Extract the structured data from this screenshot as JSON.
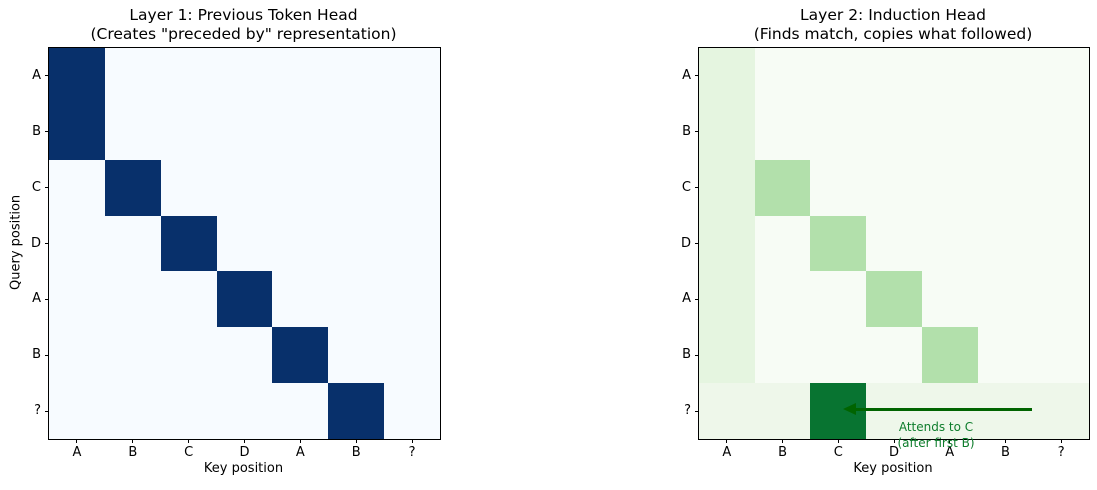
{
  "chart_data": [
    {
      "type": "heatmap",
      "title_line1": "Layer 1: Previous Token Head",
      "title_line2": "(Creates \"preceded by\" representation)",
      "xlabel": "Key position",
      "ylabel": "Query position",
      "x_ticklabels": [
        "A",
        "B",
        "C",
        "D",
        "A",
        "B",
        "?"
      ],
      "y_ticklabels": [
        "A",
        "B",
        "C",
        "D",
        "A",
        "B",
        "?"
      ],
      "colormap": "Blues",
      "value_colors": {
        "0": "#f7fbff",
        "1": "#08306b"
      },
      "matrix": [
        [
          1,
          0,
          0,
          0,
          0,
          0,
          0
        ],
        [
          1,
          0,
          0,
          0,
          0,
          0,
          0
        ],
        [
          0,
          1,
          0,
          0,
          0,
          0,
          0
        ],
        [
          0,
          0,
          1,
          0,
          0,
          0,
          0
        ],
        [
          0,
          0,
          0,
          1,
          0,
          0,
          0
        ],
        [
          0,
          0,
          0,
          0,
          1,
          0,
          0
        ],
        [
          0,
          0,
          0,
          0,
          0,
          1,
          0
        ]
      ]
    },
    {
      "type": "heatmap",
      "title_line1": "Layer 2: Induction Head",
      "title_line2": "(Finds match, copies what followed)",
      "xlabel": "Key position",
      "ylabel": "",
      "x_ticklabels": [
        "A",
        "B",
        "C",
        "D",
        "A",
        "B",
        "?"
      ],
      "y_ticklabels": [
        "A",
        "B",
        "C",
        "D",
        "A",
        "B",
        "?"
      ],
      "colormap": "Greens",
      "value_colors": {
        "0": "#f7fcf5",
        "0.05": "#eef7ea",
        "0.1": "#e5f5e0",
        "0.3": "#b2e0ab",
        "0.8": "#087431"
      },
      "matrix": [
        [
          0.1,
          0,
          0,
          0,
          0,
          0,
          0
        ],
        [
          0.1,
          0,
          0,
          0,
          0,
          0,
          0
        ],
        [
          0.1,
          0.3,
          0,
          0,
          0,
          0,
          0
        ],
        [
          0.1,
          0,
          0.3,
          0,
          0,
          0,
          0
        ],
        [
          0.1,
          0,
          0,
          0.3,
          0,
          0,
          0
        ],
        [
          0.1,
          0,
          0,
          0,
          0.3,
          0,
          0
        ],
        [
          0.05,
          0.05,
          0.8,
          0.05,
          0.05,
          0.05,
          0.05
        ]
      ],
      "annotation": {
        "line1": "Attends to C",
        "line2": "(after first B)",
        "text_color": "#0e7d2c",
        "arrow_color": "#006400"
      }
    }
  ]
}
